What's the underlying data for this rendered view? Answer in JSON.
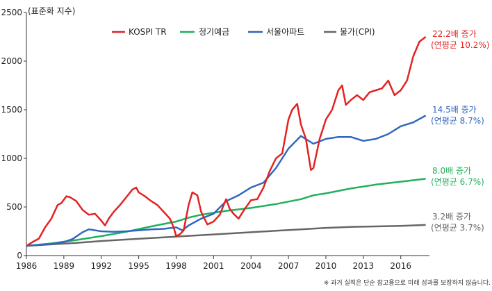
{
  "chart_data": {
    "type": "line",
    "unit_label": "(표준화 지수)",
    "ylim": [
      0,
      2500
    ],
    "y_ticks": [
      "0",
      "500",
      "1000",
      "1500",
      "2000",
      "2500"
    ],
    "x_range": [
      1986,
      2018.3
    ],
    "x_ticks": [
      "1986",
      "1989",
      "1992",
      "1995",
      "1998",
      "2001",
      "2004",
      "2007",
      "2010",
      "2013",
      "2016"
    ],
    "legend": [
      "KOSPI TR",
      "정기예금",
      "서울아파트",
      "물가(CPI)"
    ],
    "series": [
      {
        "name": "KOSPI TR",
        "color": "#e32222",
        "points": [
          [
            1986,
            100
          ],
          [
            1986.5,
            140
          ],
          [
            1987,
            175
          ],
          [
            1987.5,
            290
          ],
          [
            1988,
            380
          ],
          [
            1988.5,
            520
          ],
          [
            1988.8,
            540
          ],
          [
            1989.2,
            610
          ],
          [
            1989.5,
            600
          ],
          [
            1990,
            560
          ],
          [
            1990.5,
            470
          ],
          [
            1991,
            420
          ],
          [
            1991.5,
            430
          ],
          [
            1992,
            360
          ],
          [
            1992.3,
            310
          ],
          [
            1992.6,
            380
          ],
          [
            1993,
            450
          ],
          [
            1993.5,
            520
          ],
          [
            1994,
            600
          ],
          [
            1994.5,
            680
          ],
          [
            1994.8,
            700
          ],
          [
            1995,
            650
          ],
          [
            1995.5,
            610
          ],
          [
            1996,
            560
          ],
          [
            1996.5,
            520
          ],
          [
            1997,
            450
          ],
          [
            1997.5,
            380
          ],
          [
            1997.8,
            290
          ],
          [
            1998,
            200
          ],
          [
            1998.3,
            220
          ],
          [
            1998.6,
            260
          ],
          [
            1999,
            520
          ],
          [
            1999.3,
            650
          ],
          [
            1999.7,
            620
          ],
          [
            2000,
            450
          ],
          [
            2000.5,
            320
          ],
          [
            2001,
            350
          ],
          [
            2001.5,
            420
          ],
          [
            2002,
            580
          ],
          [
            2002.3,
            480
          ],
          [
            2002.6,
            430
          ],
          [
            2003,
            380
          ],
          [
            2003.5,
            480
          ],
          [
            2004,
            570
          ],
          [
            2004.5,
            580
          ],
          [
            2005,
            700
          ],
          [
            2005.5,
            870
          ],
          [
            2006,
            1000
          ],
          [
            2006.5,
            1050
          ],
          [
            2007,
            1400
          ],
          [
            2007.3,
            1500
          ],
          [
            2007.7,
            1560
          ],
          [
            2008,
            1350
          ],
          [
            2008.4,
            1200
          ],
          [
            2008.8,
            880
          ],
          [
            2009,
            900
          ],
          [
            2009.5,
            1200
          ],
          [
            2010,
            1400
          ],
          [
            2010.5,
            1500
          ],
          [
            2011,
            1700
          ],
          [
            2011.3,
            1750
          ],
          [
            2011.6,
            1550
          ],
          [
            2012,
            1600
          ],
          [
            2012.5,
            1650
          ],
          [
            2013,
            1600
          ],
          [
            2013.5,
            1680
          ],
          [
            2014,
            1700
          ],
          [
            2014.5,
            1720
          ],
          [
            2015,
            1800
          ],
          [
            2015.5,
            1650
          ],
          [
            2016,
            1700
          ],
          [
            2016.5,
            1800
          ],
          [
            2017,
            2050
          ],
          [
            2017.5,
            2200
          ],
          [
            2018,
            2250
          ]
        ],
        "annotation": [
          "22.2배 증가",
          "(연평균 10.2%)"
        ]
      },
      {
        "name": "정기예금",
        "color": "#1fb05a",
        "points": [
          [
            1986,
            100
          ],
          [
            1988,
            125
          ],
          [
            1990,
            160
          ],
          [
            1992,
            200
          ],
          [
            1994,
            245
          ],
          [
            1996,
            300
          ],
          [
            1998,
            350
          ],
          [
            1999,
            390
          ],
          [
            2000,
            420
          ],
          [
            2001,
            440
          ],
          [
            2002,
            460
          ],
          [
            2004,
            490
          ],
          [
            2006,
            530
          ],
          [
            2008,
            580
          ],
          [
            2009,
            620
          ],
          [
            2010,
            640
          ],
          [
            2012,
            690
          ],
          [
            2014,
            730
          ],
          [
            2016,
            760
          ],
          [
            2018,
            790
          ]
        ],
        "annotation": [
          "8.0배 증가",
          "(연평균 6.7%)"
        ]
      },
      {
        "name": "서울아파트",
        "color": "#2f67c0",
        "points": [
          [
            1986,
            100
          ],
          [
            1987,
            110
          ],
          [
            1988,
            120
          ],
          [
            1989,
            140
          ],
          [
            1989.7,
            170
          ],
          [
            1990.5,
            240
          ],
          [
            1991,
            270
          ],
          [
            1992,
            250
          ],
          [
            1993,
            245
          ],
          [
            1994,
            250
          ],
          [
            1995,
            260
          ],
          [
            1996,
            270
          ],
          [
            1997,
            275
          ],
          [
            1998,
            290
          ],
          [
            1998.5,
            260
          ],
          [
            1999,
            310
          ],
          [
            2000,
            380
          ],
          [
            2001,
            430
          ],
          [
            2002,
            560
          ],
          [
            2003,
            620
          ],
          [
            2004,
            700
          ],
          [
            2005,
            750
          ],
          [
            2006,
            900
          ],
          [
            2007,
            1100
          ],
          [
            2008,
            1230
          ],
          [
            2009,
            1150
          ],
          [
            2010,
            1200
          ],
          [
            2011,
            1220
          ],
          [
            2012,
            1220
          ],
          [
            2013,
            1180
          ],
          [
            2014,
            1200
          ],
          [
            2015,
            1250
          ],
          [
            2016,
            1330
          ],
          [
            2017,
            1370
          ],
          [
            2018,
            1440
          ]
        ],
        "annotation": [
          "14.5배 증가",
          "(연평균 8.7%)"
        ]
      },
      {
        "name": "물가(CPI)",
        "color": "#666666",
        "points": [
          [
            1986,
            100
          ],
          [
            1988,
            115
          ],
          [
            1990,
            130
          ],
          [
            1992,
            150
          ],
          [
            1994,
            165
          ],
          [
            1996,
            180
          ],
          [
            1998,
            195
          ],
          [
            2000,
            210
          ],
          [
            2002,
            225
          ],
          [
            2004,
            240
          ],
          [
            2006,
            255
          ],
          [
            2008,
            270
          ],
          [
            2010,
            285
          ],
          [
            2012,
            295
          ],
          [
            2014,
            300
          ],
          [
            2016,
            305
          ],
          [
            2018,
            315
          ]
        ],
        "annotation": [
          "3.2배 증가",
          "(연평균 3.7%)"
        ]
      }
    ],
    "footnote": "※ 과거 실적은 단순 참고용으로 미래 성과를 보장하지 않습니다."
  }
}
